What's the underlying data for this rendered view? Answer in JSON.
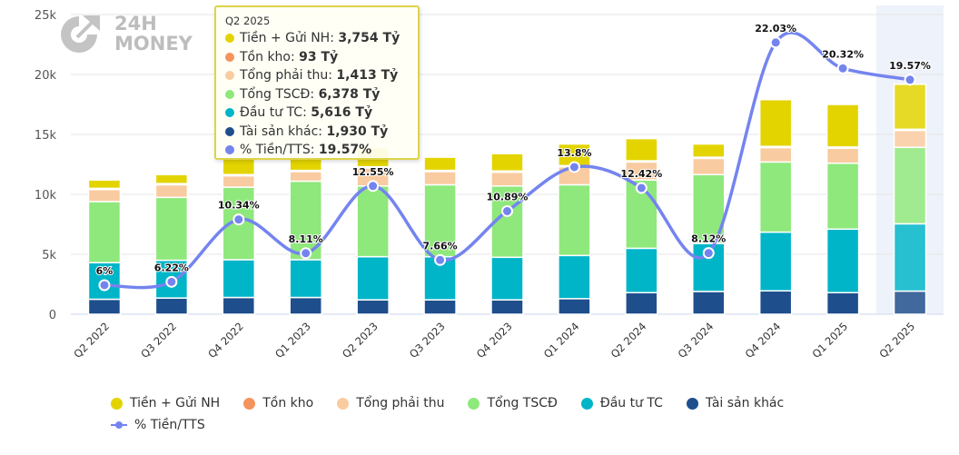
{
  "logo": {
    "text_line1": "24H",
    "text_line2": "MONEY"
  },
  "chart_data": {
    "type": "bar",
    "stacked": true,
    "categories": [
      "Q2 2022",
      "Q3 2022",
      "Q4 2022",
      "Q1 2023",
      "Q2 2023",
      "Q3 2023",
      "Q4 2023",
      "Q1 2024",
      "Q2 2024",
      "Q3 2024",
      "Q4 2024",
      "Q1 2025",
      "Q2 2025"
    ],
    "ylim": [
      0,
      25000
    ],
    "yticks": [
      0,
      5000,
      10000,
      15000,
      20000,
      25000
    ],
    "ytick_labels": [
      "0",
      "5k",
      "10k",
      "15k",
      "20k",
      "25k"
    ],
    "grid": true,
    "legend_placement": "bottom",
    "unit": "Tỷ",
    "series": [
      {
        "name": "Tài sản khác",
        "color": "#1f4e8c",
        "values": [
          1250,
          1350,
          1400,
          1400,
          1200,
          1200,
          1200,
          1300,
          1800,
          1900,
          1950,
          1800,
          1930
        ]
      },
      {
        "name": "Đầu tư TC",
        "color": "#00b5c8",
        "values": [
          3050,
          3150,
          3150,
          3150,
          3600,
          3600,
          3550,
          3600,
          3700,
          4000,
          4900,
          5300,
          5616
        ]
      },
      {
        "name": "Tổng TSCĐ",
        "color": "#8fe87c",
        "values": [
          5100,
          5250,
          6050,
          6550,
          5900,
          6000,
          5950,
          5900,
          5700,
          5750,
          5850,
          5500,
          6378
        ]
      },
      {
        "name": "Tổng phải thu",
        "color": "#f9cba0",
        "values": [
          1000,
          1050,
          950,
          800,
          1500,
          1100,
          1150,
          1500,
          1500,
          1350,
          1200,
          1250,
          1413
        ]
      },
      {
        "name": "Tồn kho",
        "color": "#f4945c",
        "values": [
          100,
          100,
          100,
          100,
          100,
          100,
          100,
          100,
          100,
          100,
          100,
          100,
          93
        ]
      },
      {
        "name": "Tiền + Gửi NH",
        "color": "#e3d400",
        "values": [
          700,
          750,
          1400,
          1150,
          1600,
          1100,
          1450,
          1800,
          1850,
          1100,
          3900,
          3550,
          3754
        ]
      }
    ],
    "line_series": {
      "name": "% Tiền/TTS",
      "color": "#7484ef",
      "axis": "secondary",
      "values": [
        6,
        6.22,
        10.34,
        8.11,
        12.55,
        7.66,
        10.89,
        13.8,
        12.42,
        8.12,
        22.03,
        20.32,
        19.57
      ],
      "labels": [
        "6%",
        "6.22%",
        "10.34%",
        "8.11%",
        "12.55%",
        "7.66%",
        "10.89%",
        "13.8%",
        "12.42%",
        "8.12%",
        "22.03%",
        "20.32%",
        "19.57%"
      ]
    },
    "highlighted_category": "Q2 2025"
  },
  "legend": {
    "items": [
      {
        "label": "Tiền + Gửi NH",
        "color": "#e3d400"
      },
      {
        "label": "Tồn kho",
        "color": "#f4945c"
      },
      {
        "label": "Tổng phải thu",
        "color": "#f9cba0"
      },
      {
        "label": "Tổng TSCĐ",
        "color": "#8fe87c"
      },
      {
        "label": "Đầu tư TC",
        "color": "#00b5c8"
      },
      {
        "label": "Tài sản khác",
        "color": "#1f4e8c"
      }
    ],
    "line_label": "% Tiền/TTS"
  },
  "tooltip": {
    "title": "Q2 2025",
    "rows": [
      {
        "label": "Tiền + Gửi NH: ",
        "value": "3,754 Tỷ",
        "color": "#e3d400"
      },
      {
        "label": "Tồn kho: ",
        "value": "93 Tỷ",
        "color": "#f4945c"
      },
      {
        "label": "Tổng phải thu: ",
        "value": "1,413 Tỷ",
        "color": "#f9cba0"
      },
      {
        "label": "Tổng TSCĐ: ",
        "value": "6,378 Tỷ",
        "color": "#8fe87c"
      },
      {
        "label": "Đầu tư TC: ",
        "value": "5,616 Tỷ",
        "color": "#00b5c8"
      },
      {
        "label": "Tài sản khác: ",
        "value": "1,930 Tỷ",
        "color": "#1f4e8c"
      },
      {
        "label": "% Tiền/TTS: ",
        "value": "19.57%",
        "color": "#7484ef"
      }
    ]
  }
}
